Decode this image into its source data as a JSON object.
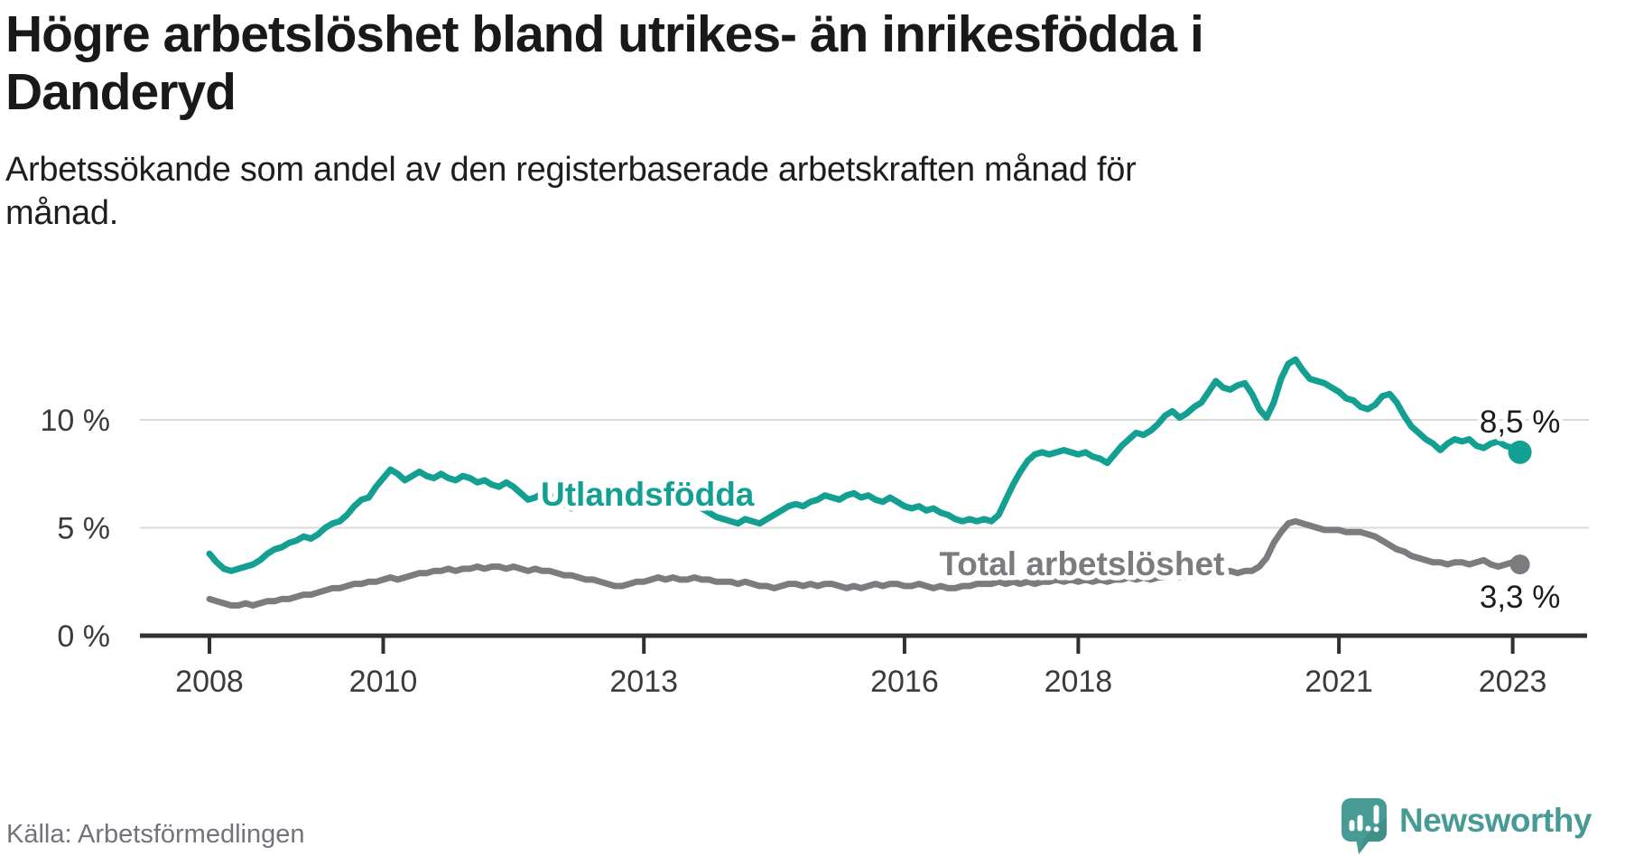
{
  "header": {
    "title_lines": [
      "Högre arbetslöshet bland utrikes- än inrikesfödda i",
      "Danderyd"
    ],
    "subtitle_lines": [
      "Arbetssökande som andel av den registerbaserade arbetskraften månad för",
      "månad."
    ]
  },
  "chart_data": {
    "type": "line",
    "frequency": "monthly",
    "x_start": "2008-01",
    "x_end": "2023-02",
    "unit": "%",
    "ylim": [
      0,
      13.5
    ],
    "grid": "horizontal",
    "y_ticks": [
      {
        "label": "0 %",
        "value": 0
      },
      {
        "label": "5 %",
        "value": 5
      },
      {
        "label": "10 %",
        "value": 10
      }
    ],
    "x_ticks": [
      {
        "label": "2008",
        "month_index": 0
      },
      {
        "label": "2010",
        "month_index": 24
      },
      {
        "label": "2013",
        "month_index": 60
      },
      {
        "label": "2016",
        "month_index": 96
      },
      {
        "label": "2018",
        "month_index": 120
      },
      {
        "label": "2021",
        "month_index": 156
      },
      {
        "label": "2023",
        "month_index": 180
      }
    ],
    "series": [
      {
        "name": "Utlandsfödda",
        "color": "#13a092",
        "end_label": "8,5 %",
        "end_value": 8.5,
        "label_position": {
          "month_index": 60.5,
          "value": 6.57
        },
        "values": [
          3.8,
          3.4,
          3.1,
          3.0,
          3.1,
          3.2,
          3.3,
          3.5,
          3.8,
          4.0,
          4.1,
          4.3,
          4.4,
          4.6,
          4.5,
          4.7,
          5.0,
          5.2,
          5.3,
          5.6,
          6.0,
          6.3,
          6.4,
          6.9,
          7.3,
          7.7,
          7.5,
          7.2,
          7.4,
          7.6,
          7.4,
          7.3,
          7.5,
          7.3,
          7.2,
          7.4,
          7.3,
          7.1,
          7.2,
          7.0,
          6.9,
          7.1,
          6.9,
          6.6,
          6.3,
          6.4,
          6.6,
          6.5,
          6.3,
          6.1,
          5.9,
          6.1,
          6.3,
          6.2,
          6.4,
          6.3,
          6.5,
          6.4,
          6.6,
          6.5,
          6.6,
          6.8,
          6.7,
          6.6,
          6.7,
          6.5,
          6.3,
          6.1,
          5.9,
          5.7,
          5.5,
          5.4,
          5.3,
          5.2,
          5.4,
          5.3,
          5.2,
          5.4,
          5.6,
          5.8,
          6.0,
          6.1,
          6.0,
          6.2,
          6.3,
          6.5,
          6.4,
          6.3,
          6.5,
          6.6,
          6.4,
          6.5,
          6.3,
          6.2,
          6.4,
          6.2,
          6.0,
          5.9,
          6.0,
          5.8,
          5.9,
          5.7,
          5.6,
          5.4,
          5.3,
          5.4,
          5.3,
          5.4,
          5.3,
          5.6,
          6.3,
          7.0,
          7.6,
          8.1,
          8.4,
          8.5,
          8.4,
          8.5,
          8.6,
          8.5,
          8.4,
          8.5,
          8.3,
          8.2,
          8.0,
          8.4,
          8.8,
          9.1,
          9.4,
          9.3,
          9.5,
          9.8,
          10.2,
          10.4,
          10.1,
          10.3,
          10.6,
          10.8,
          11.3,
          11.8,
          11.5,
          11.4,
          11.6,
          11.7,
          11.2,
          10.5,
          10.1,
          10.8,
          11.9,
          12.6,
          12.8,
          12.3,
          11.9,
          11.8,
          11.7,
          11.5,
          11.3,
          11.0,
          10.9,
          10.6,
          10.5,
          10.7,
          11.1,
          11.2,
          10.8,
          10.2,
          9.7,
          9.4,
          9.1,
          8.9,
          8.6,
          8.9,
          9.1,
          9.0,
          9.1,
          8.8,
          8.7,
          8.9,
          9.0,
          8.8,
          8.7,
          8.5
        ]
      },
      {
        "name": "Total arbetslöshet",
        "color": "#7b7b80",
        "end_label": "3,3 %",
        "end_value": 3.3,
        "label_position": {
          "month_index": 120.5,
          "value": 3.35
        },
        "values": [
          1.7,
          1.6,
          1.5,
          1.4,
          1.4,
          1.5,
          1.4,
          1.5,
          1.6,
          1.6,
          1.7,
          1.7,
          1.8,
          1.9,
          1.9,
          2.0,
          2.1,
          2.2,
          2.2,
          2.3,
          2.4,
          2.4,
          2.5,
          2.5,
          2.6,
          2.7,
          2.6,
          2.7,
          2.8,
          2.9,
          2.9,
          3.0,
          3.0,
          3.1,
          3.0,
          3.1,
          3.1,
          3.2,
          3.1,
          3.2,
          3.2,
          3.1,
          3.2,
          3.1,
          3.0,
          3.1,
          3.0,
          3.0,
          2.9,
          2.8,
          2.8,
          2.7,
          2.6,
          2.6,
          2.5,
          2.4,
          2.3,
          2.3,
          2.4,
          2.5,
          2.5,
          2.6,
          2.7,
          2.6,
          2.7,
          2.6,
          2.6,
          2.7,
          2.6,
          2.6,
          2.5,
          2.5,
          2.5,
          2.4,
          2.5,
          2.4,
          2.3,
          2.3,
          2.2,
          2.3,
          2.4,
          2.4,
          2.3,
          2.4,
          2.3,
          2.4,
          2.4,
          2.3,
          2.2,
          2.3,
          2.2,
          2.3,
          2.4,
          2.3,
          2.4,
          2.4,
          2.3,
          2.3,
          2.4,
          2.3,
          2.2,
          2.3,
          2.2,
          2.2,
          2.3,
          2.3,
          2.4,
          2.4,
          2.4,
          2.5,
          2.4,
          2.5,
          2.4,
          2.5,
          2.4,
          2.5,
          2.5,
          2.6,
          2.5,
          2.6,
          2.5,
          2.6,
          2.5,
          2.6,
          2.5,
          2.6,
          2.6,
          2.7,
          2.6,
          2.7,
          2.6,
          2.7,
          2.7,
          2.8,
          2.7,
          2.8,
          2.8,
          2.9,
          2.8,
          2.9,
          2.9,
          3.0,
          2.9,
          3.0,
          3.0,
          3.2,
          3.6,
          4.3,
          4.8,
          5.2,
          5.3,
          5.2,
          5.1,
          5.0,
          4.9,
          4.9,
          4.9,
          4.8,
          4.8,
          4.8,
          4.7,
          4.6,
          4.4,
          4.2,
          4.0,
          3.9,
          3.7,
          3.6,
          3.5,
          3.4,
          3.4,
          3.3,
          3.4,
          3.4,
          3.3,
          3.4,
          3.5,
          3.3,
          3.2,
          3.3,
          3.4,
          3.3
        ]
      }
    ]
  },
  "footer": {
    "source": "Källa: Arbetsförmedlingen",
    "logo_text": "Newsworthy"
  },
  "colors": {
    "teal_series": "#13a092",
    "gray_series": "#7b7b80",
    "grid": "#dadada",
    "axis": "#303034",
    "tick_text": "#3b3b3b",
    "end_label_text": "#1c1c1c",
    "logo_teal": "#479b94",
    "logo_fold": "#3a877f"
  }
}
